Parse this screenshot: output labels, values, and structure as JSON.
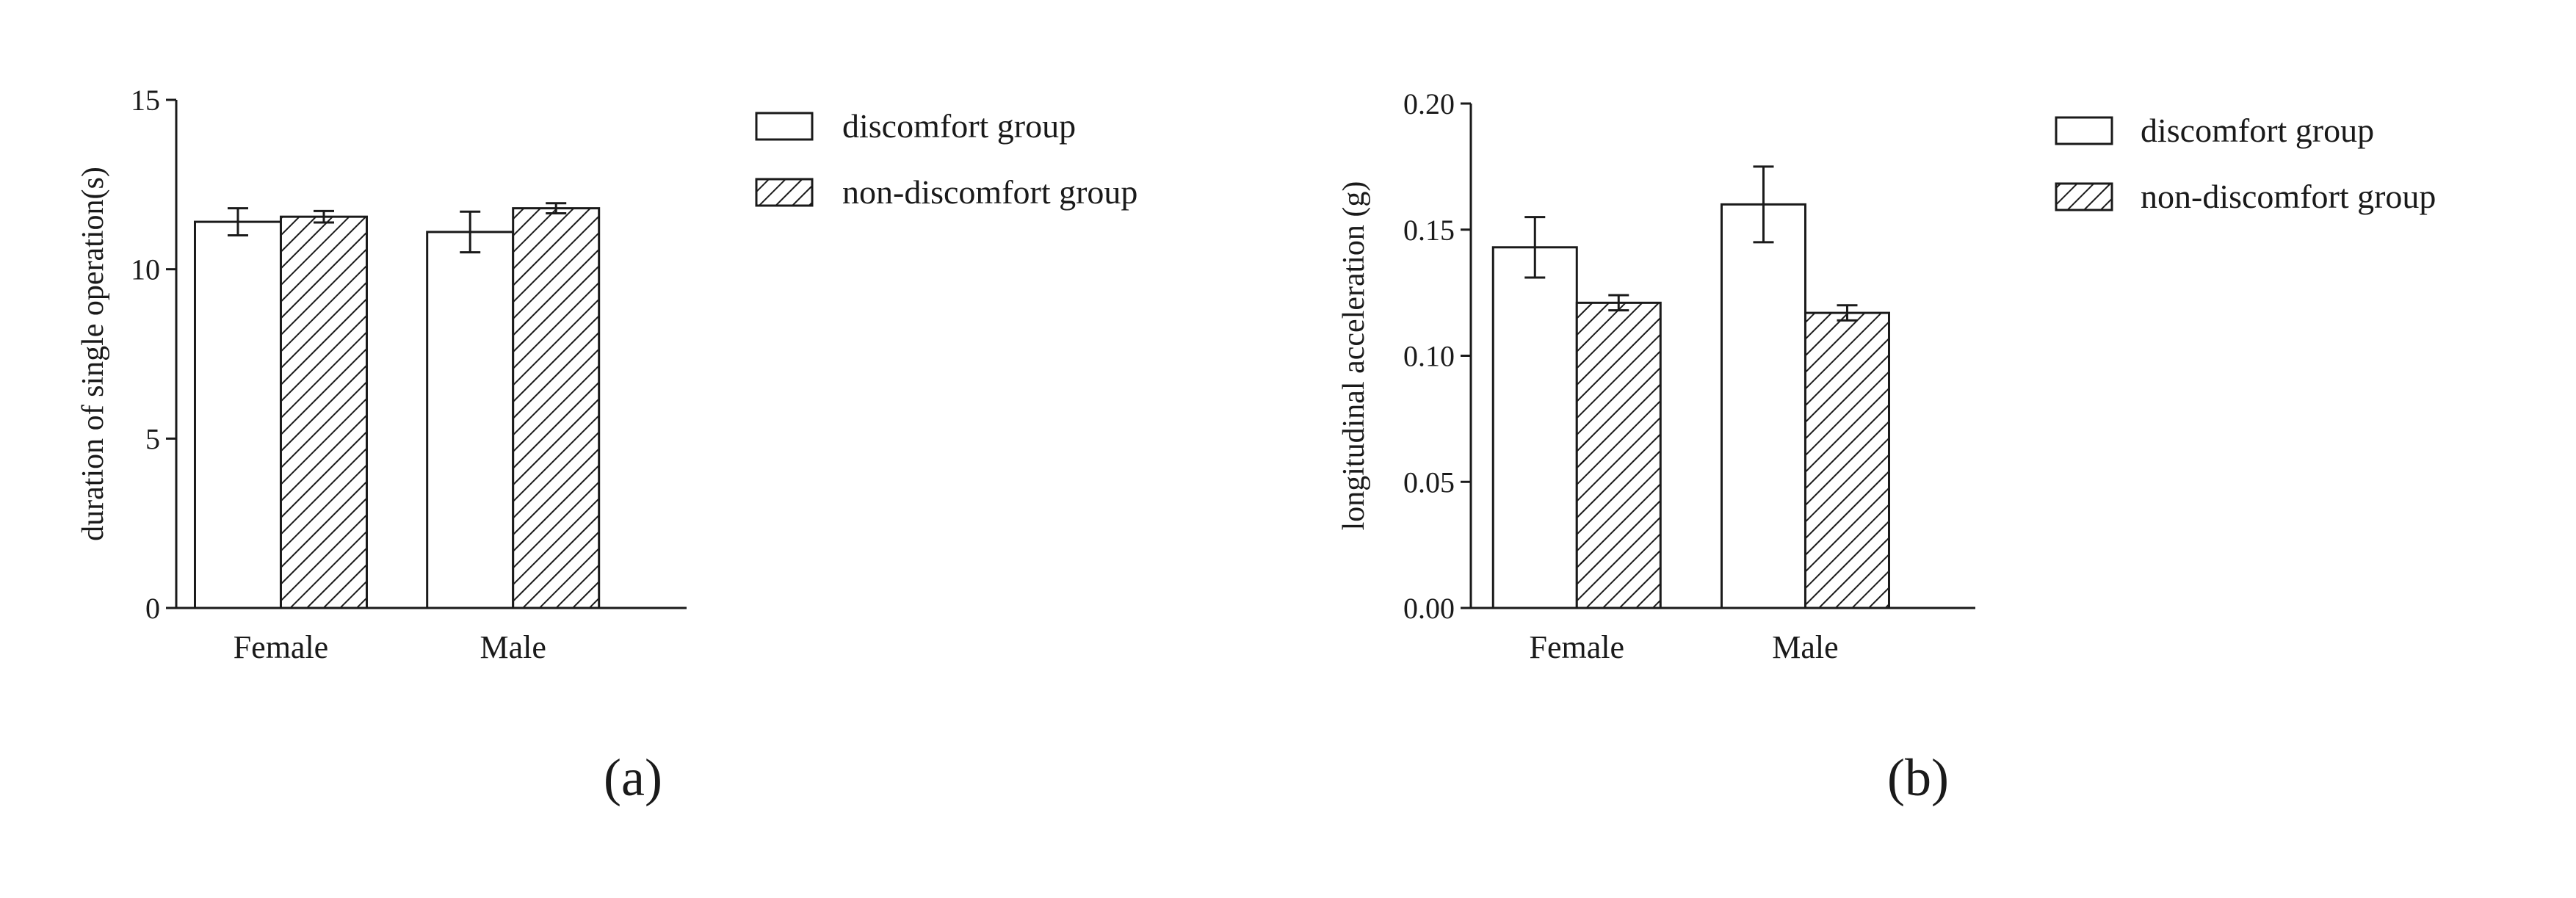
{
  "chart_data": [
    {
      "type": "bar",
      "panel_label": "(a)",
      "categories": [
        "Female",
        "Male"
      ],
      "ylabel": "duration of single operation(s)",
      "xlabel": "",
      "ylim": [
        0,
        15
      ],
      "yticks": [
        "0",
        "5",
        "10",
        "15"
      ],
      "series": [
        {
          "name": "discomfort group",
          "fill": "blank",
          "values": [
            11.4,
            11.1
          ],
          "errors": [
            0.4,
            0.6
          ]
        },
        {
          "name": "non-discomfort group",
          "fill": "hatched",
          "values": [
            11.55,
            11.8
          ],
          "errors": [
            0.17,
            0.15
          ]
        }
      ],
      "legend_position": "right",
      "grid": false
    },
    {
      "type": "bar",
      "panel_label": "(b)",
      "categories": [
        "Female",
        "Male"
      ],
      "ylabel": "longitudinal acceleration (g)",
      "xlabel": "",
      "ylim": [
        0,
        0.2
      ],
      "yticks": [
        "0.00",
        "0.05",
        "0.10",
        "0.15",
        "0.20"
      ],
      "series": [
        {
          "name": "discomfort group",
          "fill": "blank",
          "values": [
            0.143,
            0.16
          ],
          "errors": [
            0.012,
            0.015
          ]
        },
        {
          "name": "non-discomfort group",
          "fill": "hatched",
          "values": [
            0.121,
            0.117
          ],
          "errors": [
            0.003,
            0.003
          ]
        }
      ],
      "legend_position": "right",
      "grid": false
    }
  ],
  "colors": {
    "axis": "#1a1a1a",
    "bar_fill": "#ffffff",
    "hatch": "#1a1a1a"
  }
}
